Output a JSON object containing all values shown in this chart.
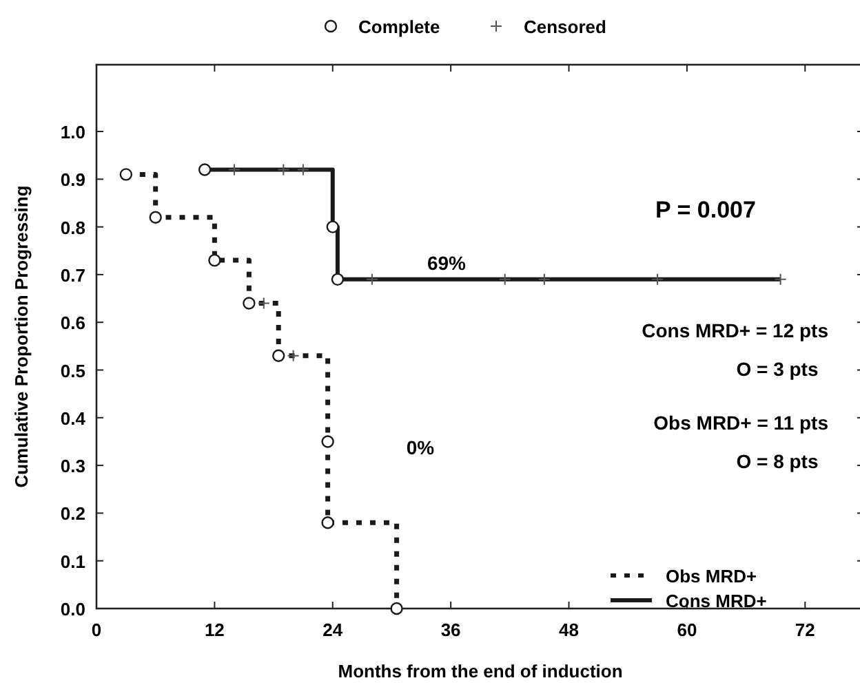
{
  "chart_data": {
    "type": "step",
    "xlabel": "Months from the end of induction",
    "ylabel": "Cumulative Proportion Progressing",
    "xlim": [
      0,
      78
    ],
    "xticks": [
      0,
      12,
      24,
      36,
      48,
      60,
      72
    ],
    "ylim": [
      0,
      1.14
    ],
    "yticks": [
      {
        "value": 0,
        "label": "0.0"
      },
      {
        "value": 0.1,
        "label": "0.1"
      },
      {
        "value": 0.2,
        "label": "0.2"
      },
      {
        "value": 0.3,
        "label": "0.3"
      },
      {
        "value": 0.4,
        "label": "0.4"
      },
      {
        "value": 0.5,
        "label": "0.5"
      },
      {
        "value": 0.6,
        "label": "0.6"
      },
      {
        "value": 0.7,
        "label": "0.7"
      },
      {
        "value": 0.8,
        "label": "0.8"
      },
      {
        "value": 0.9,
        "label": "0.9"
      },
      {
        "value": 1,
        "label": "1.0"
      }
    ],
    "grid": false,
    "legend": "top",
    "series": [
      {
        "name": "Obs MRD+",
        "line_style": "dotted",
        "color": "#1a1a1a",
        "x": [
          3,
          6,
          12,
          15.5,
          18.5,
          23.5,
          23.5,
          30.5
        ],
        "values": [
          0.91,
          0.82,
          0.73,
          0.64,
          0.53,
          0.35,
          0.18,
          0
        ]
      },
      {
        "name": "Cons MRD+",
        "line_style": "solid",
        "color": "#1a1a1a",
        "x": [
          11,
          24,
          24.5,
          69.5
        ],
        "values": [
          0.92,
          0.8,
          0.69,
          0.69
        ]
      },
      {
        "name": "Complete",
        "type": "scatter",
        "marker": "circle",
        "color": "#1a1a1a",
        "x": [
          3,
          6,
          12,
          15.5,
          18.5,
          23.5,
          23.5,
          30.5,
          11,
          24,
          24.5
        ],
        "values": [
          0.91,
          0.82,
          0.73,
          0.64,
          0.53,
          0.35,
          0.18,
          0,
          0.92,
          0.8,
          0.69
        ]
      },
      {
        "name": "Censored",
        "type": "scatter",
        "marker": "cross",
        "color": "#555555",
        "x": [
          17,
          20,
          14,
          19,
          21,
          28,
          41.5,
          45.5,
          57,
          69.5
        ],
        "values": [
          0.64,
          0.53,
          0.92,
          0.92,
          0.92,
          0.69,
          0.69,
          0.69,
          0.69,
          0.69
        ]
      }
    ],
    "annotations": [
      "P = 0.007",
      "69%",
      "Cons MRD+ = 12 pts",
      "O = 3 pts",
      "Obs MRD+ = 11 pts",
      "O = 8 pts",
      "0%"
    ]
  }
}
